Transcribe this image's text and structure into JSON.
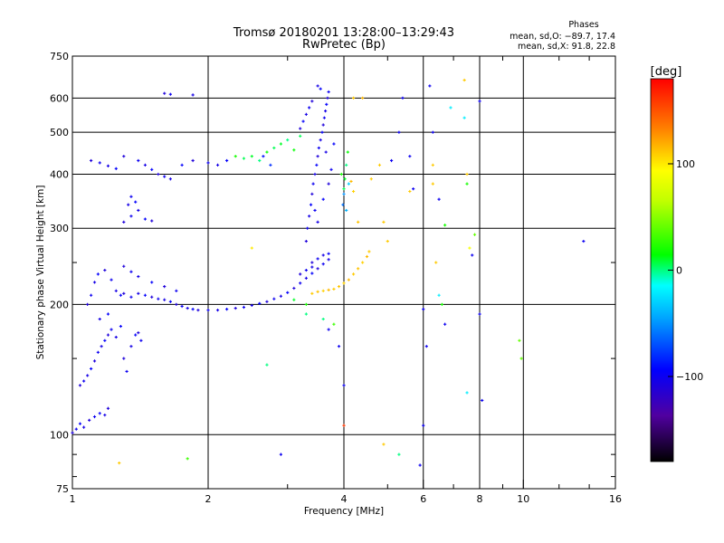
{
  "chart_data": {
    "type": "scatter",
    "title_line1": "Tromsø 20180201 13:28:00–13:29:43",
    "title_line2": "RwPretec (Bp)",
    "xlabel": "Frequency [MHz]",
    "ylabel": "Stationary phase Virtual Height [km]",
    "x_scale": "log",
    "y_scale": "log",
    "xlim": [
      1,
      16
    ],
    "ylim": [
      75,
      750
    ],
    "x_ticks": [
      1,
      2,
      4,
      6,
      8,
      10,
      16
    ],
    "x_tick_labels": [
      "1",
      "2",
      "4",
      "6",
      "8",
      "10",
      "16"
    ],
    "x_gridlines": [
      2,
      4,
      6,
      8,
      10
    ],
    "y_ticks": [
      75,
      100,
      200,
      300,
      400,
      500,
      600,
      750
    ],
    "y_tick_labels": [
      "75",
      "100",
      "200",
      "300",
      "400",
      "500",
      "600",
      "750"
    ],
    "y_gridlines": [
      100,
      200,
      300,
      400,
      500,
      600
    ],
    "grid": true,
    "phases": {
      "heading": "Phases",
      "o_line": "mean, sd,O: −89.7, 17.4",
      "x_line": "mean, sd,X:  91.8, 22.8"
    },
    "colorbar": {
      "label": "[deg]",
      "range": [
        -180,
        180
      ],
      "ticks": [
        100,
        0,
        -100
      ],
      "tick_labels": [
        "100",
        "0",
        "−100"
      ],
      "colormap": "rainbow"
    },
    "series": [
      {
        "points": [
          [
            1.0,
            101,
            -110
          ],
          [
            1.02,
            103,
            -100
          ],
          [
            1.04,
            106,
            -95
          ],
          [
            1.06,
            104,
            -105
          ],
          [
            1.09,
            108,
            -110
          ],
          [
            1.12,
            110,
            -100
          ],
          [
            1.15,
            112,
            -95
          ],
          [
            1.18,
            111,
            -105
          ],
          [
            1.2,
            115,
            -110
          ],
          [
            1.04,
            130,
            -110
          ],
          [
            1.06,
            133,
            -100
          ],
          [
            1.08,
            137,
            -105
          ],
          [
            1.1,
            142,
            -95
          ],
          [
            1.12,
            148,
            -110
          ],
          [
            1.14,
            155,
            -100
          ],
          [
            1.16,
            160,
            -105
          ],
          [
            1.18,
            165,
            -95
          ],
          [
            1.2,
            170,
            -110
          ],
          [
            1.22,
            175,
            -100
          ],
          [
            1.25,
            168,
            -105
          ],
          [
            1.28,
            178,
            -95
          ],
          [
            1.3,
            150,
            -110
          ],
          [
            1.32,
            140,
            -100
          ],
          [
            1.35,
            160,
            -105
          ],
          [
            1.38,
            170,
            -95
          ],
          [
            1.4,
            172,
            -110
          ],
          [
            1.42,
            165,
            -100
          ],
          [
            1.15,
            185,
            -105
          ],
          [
            1.2,
            190,
            -95
          ],
          [
            1.08,
            200,
            -110
          ],
          [
            1.1,
            210,
            -100
          ],
          [
            1.12,
            225,
            -105
          ],
          [
            1.14,
            235,
            -95
          ],
          [
            1.18,
            240,
            -110
          ],
          [
            1.22,
            228,
            -100
          ],
          [
            1.25,
            215,
            -105
          ],
          [
            1.28,
            210,
            -95
          ],
          [
            1.3,
            212,
            -110
          ],
          [
            1.35,
            208,
            -100
          ],
          [
            1.4,
            212,
            -105
          ],
          [
            1.45,
            210,
            -95
          ],
          [
            1.5,
            208,
            -110
          ],
          [
            1.55,
            206,
            -100
          ],
          [
            1.6,
            205,
            -105
          ],
          [
            1.65,
            203,
            -95
          ],
          [
            1.7,
            200,
            -110
          ],
          [
            1.75,
            198,
            -100
          ],
          [
            1.8,
            196,
            -105
          ],
          [
            1.85,
            195,
            -95
          ],
          [
            1.9,
            194,
            -110
          ],
          [
            2.0,
            194,
            -100
          ],
          [
            2.1,
            194,
            -105
          ],
          [
            2.2,
            195,
            -95
          ],
          [
            2.3,
            196,
            -110
          ],
          [
            2.4,
            197,
            -100
          ],
          [
            2.5,
            199,
            -105
          ],
          [
            2.6,
            201,
            -95
          ],
          [
            2.7,
            203,
            -110
          ],
          [
            2.8,
            206,
            -100
          ],
          [
            2.9,
            209,
            -105
          ],
          [
            3.0,
            213,
            -95
          ],
          [
            3.1,
            218,
            -110
          ],
          [
            3.2,
            224,
            -100
          ],
          [
            3.3,
            230,
            -105
          ],
          [
            3.4,
            236,
            -95
          ],
          [
            3.5,
            242,
            -110
          ],
          [
            3.6,
            248,
            -100
          ],
          [
            3.7,
            254,
            -105
          ],
          [
            1.3,
            245,
            -110
          ],
          [
            1.35,
            238,
            -100
          ],
          [
            1.4,
            232,
            -105
          ],
          [
            1.5,
            225,
            -95
          ],
          [
            1.6,
            220,
            -110
          ],
          [
            1.7,
            215,
            -100
          ],
          [
            1.3,
            310,
            -110
          ],
          [
            1.35,
            320,
            -100
          ],
          [
            1.4,
            330,
            -105
          ],
          [
            1.45,
            315,
            -95
          ],
          [
            1.5,
            312,
            -110
          ],
          [
            1.35,
            355,
            -100
          ],
          [
            1.33,
            340,
            -105
          ],
          [
            1.38,
            345,
            -95
          ],
          [
            1.1,
            430,
            -110
          ],
          [
            1.15,
            425,
            -100
          ],
          [
            1.2,
            418,
            -105
          ],
          [
            1.25,
            412,
            -95
          ],
          [
            1.3,
            440,
            -110
          ],
          [
            1.4,
            430,
            -100
          ],
          [
            1.45,
            420,
            -105
          ],
          [
            1.5,
            410,
            -95
          ],
          [
            1.55,
            400,
            -110
          ],
          [
            1.6,
            395,
            -100
          ],
          [
            1.65,
            390,
            -105
          ],
          [
            1.75,
            420,
            -95
          ],
          [
            1.85,
            430,
            -110
          ],
          [
            2.0,
            425,
            -100
          ],
          [
            2.1,
            420,
            -105
          ],
          [
            2.2,
            430,
            -95
          ],
          [
            1.6,
            615,
            -110
          ],
          [
            1.65,
            612,
            -100
          ],
          [
            1.85,
            610,
            -105
          ],
          [
            3.3,
            280,
            -110
          ],
          [
            3.32,
            300,
            -100
          ],
          [
            3.35,
            320,
            -105
          ],
          [
            3.38,
            340,
            -95
          ],
          [
            3.4,
            360,
            -110
          ],
          [
            3.42,
            380,
            -100
          ],
          [
            3.45,
            400,
            -105
          ],
          [
            3.48,
            420,
            -95
          ],
          [
            3.5,
            440,
            -110
          ],
          [
            3.52,
            460,
            -100
          ],
          [
            3.55,
            480,
            -105
          ],
          [
            3.58,
            500,
            -95
          ],
          [
            3.6,
            520,
            -110
          ],
          [
            3.62,
            540,
            -100
          ],
          [
            3.64,
            560,
            -105
          ],
          [
            3.66,
            580,
            -95
          ],
          [
            3.68,
            600,
            -110
          ],
          [
            3.7,
            620,
            -100
          ],
          [
            3.5,
            640,
            -105
          ],
          [
            3.55,
            630,
            -95
          ],
          [
            3.4,
            590,
            -110
          ],
          [
            3.35,
            570,
            -100
          ],
          [
            3.3,
            550,
            -105
          ],
          [
            3.25,
            530,
            -95
          ],
          [
            3.2,
            510,
            -110
          ],
          [
            3.45,
            330,
            -100
          ],
          [
            3.5,
            310,
            -105
          ],
          [
            3.6,
            350,
            -95
          ],
          [
            3.7,
            380,
            -110
          ],
          [
            3.75,
            410,
            -100
          ],
          [
            3.65,
            450,
            -105
          ],
          [
            3.8,
            470,
            -95
          ],
          [
            3.4,
            250,
            -110
          ],
          [
            3.5,
            255,
            -100
          ],
          [
            3.6,
            260,
            -105
          ],
          [
            3.7,
            262,
            -95
          ],
          [
            3.2,
            235,
            -110
          ],
          [
            3.3,
            240,
            -100
          ],
          [
            3.4,
            244,
            -105
          ],
          [
            2.4,
            435,
            5
          ],
          [
            2.5,
            440,
            10
          ],
          [
            2.6,
            430,
            0
          ],
          [
            2.7,
            450,
            15
          ],
          [
            2.8,
            460,
            5
          ],
          [
            2.9,
            470,
            10
          ],
          [
            3.0,
            480,
            0
          ],
          [
            3.1,
            455,
            15
          ],
          [
            2.3,
            440,
            20
          ],
          [
            3.2,
            490,
            5
          ],
          [
            2.65,
            440,
            -90
          ],
          [
            2.75,
            420,
            -80
          ],
          [
            4.0,
            370,
            5
          ],
          [
            4.02,
            390,
            10
          ],
          [
            4.05,
            420,
            0
          ],
          [
            4.08,
            450,
            15
          ],
          [
            3.95,
            400,
            20
          ],
          [
            4.1,
            380,
            -30
          ],
          [
            4.0,
            360,
            -50
          ],
          [
            3.98,
            340,
            -60
          ],
          [
            4.05,
            330,
            -40
          ],
          [
            3.3,
            200,
            20
          ],
          [
            3.1,
            205,
            10
          ],
          [
            3.4,
            212,
            110
          ],
          [
            3.5,
            214,
            112
          ],
          [
            3.6,
            215,
            108
          ],
          [
            3.7,
            216,
            115
          ],
          [
            3.8,
            217,
            110
          ],
          [
            3.9,
            220,
            112
          ],
          [
            4.0,
            224,
            108
          ],
          [
            4.1,
            228,
            115
          ],
          [
            4.2,
            235,
            110
          ],
          [
            4.3,
            242,
            112
          ],
          [
            4.4,
            250,
            108
          ],
          [
            4.5,
            258,
            115
          ],
          [
            4.55,
            265,
            110
          ],
          [
            4.3,
            310,
            112
          ],
          [
            4.2,
            365,
            108
          ],
          [
            4.15,
            385,
            115
          ],
          [
            4.4,
            600,
            115
          ],
          [
            4.2,
            600,
            110
          ],
          [
            2.7,
            145,
            0
          ],
          [
            3.3,
            190,
            0
          ],
          [
            3.6,
            185,
            0
          ],
          [
            3.8,
            180,
            30
          ],
          [
            3.9,
            160,
            -100
          ],
          [
            4.0,
            130,
            -100
          ],
          [
            3.7,
            175,
            -100
          ],
          [
            4.0,
            105,
            160
          ],
          [
            4.9,
            95,
            110
          ],
          [
            2.9,
            90,
            -100
          ],
          [
            1.8,
            88,
            30
          ],
          [
            1.27,
            86,
            110
          ],
          [
            2.5,
            270,
            100
          ],
          [
            5.3,
            90,
            0
          ],
          [
            6.3,
            380,
            110
          ],
          [
            6.3,
            420,
            110
          ],
          [
            6.4,
            250,
            110
          ],
          [
            6.5,
            210,
            -20
          ],
          [
            6.6,
            200,
            20
          ],
          [
            6.7,
            180,
            -100
          ],
          [
            6.5,
            350,
            -100
          ],
          [
            6.7,
            305,
            20
          ],
          [
            6.9,
            570,
            -20
          ],
          [
            7.4,
            660,
            110
          ],
          [
            7.4,
            540,
            -20
          ],
          [
            7.5,
            400,
            110
          ],
          [
            7.5,
            380,
            20
          ],
          [
            7.6,
            270,
            90
          ],
          [
            7.7,
            260,
            -100
          ],
          [
            7.8,
            290,
            40
          ],
          [
            7.5,
            125,
            -20
          ],
          [
            8.0,
            190,
            -100
          ],
          [
            8.1,
            120,
            -100
          ],
          [
            9.8,
            165,
            40
          ],
          [
            9.9,
            150,
            40
          ],
          [
            13.6,
            280,
            -100
          ],
          [
            6.2,
            640,
            -100
          ],
          [
            6.3,
            500,
            -100
          ],
          [
            5.6,
            440,
            -100
          ],
          [
            5.7,
            370,
            -100
          ],
          [
            6.0,
            195,
            -100
          ],
          [
            6.1,
            160,
            -100
          ],
          [
            6.0,
            105,
            -100
          ],
          [
            5.9,
            85,
            -100
          ],
          [
            5.4,
            600,
            -100
          ],
          [
            5.3,
            500,
            -100
          ],
          [
            5.1,
            430,
            -100
          ],
          [
            8.0,
            590,
            -100
          ],
          [
            4.9,
            310,
            110
          ],
          [
            5.0,
            280,
            110
          ],
          [
            4.8,
            420,
            110
          ],
          [
            4.6,
            390,
            110
          ],
          [
            5.6,
            365,
            110
          ]
        ]
      }
    ]
  }
}
